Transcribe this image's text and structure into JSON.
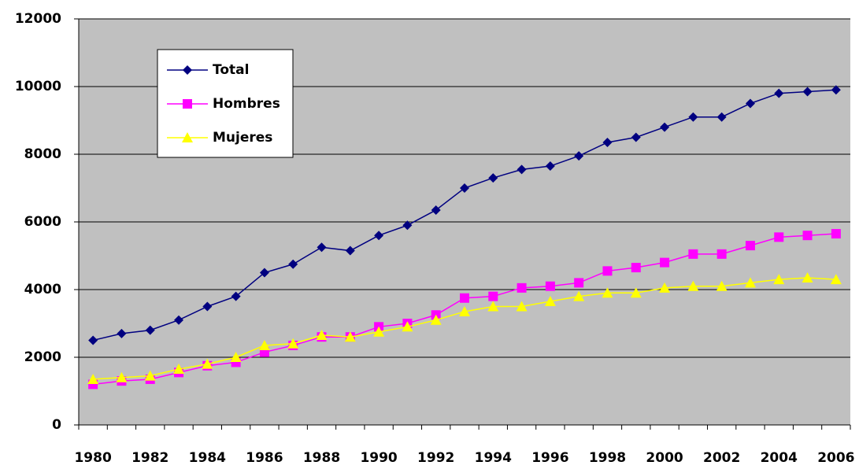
{
  "chart_data": {
    "type": "line",
    "categories": [
      1980,
      null,
      1982,
      null,
      1984,
      null,
      1986,
      null,
      1988,
      null,
      1990,
      null,
      1992,
      null,
      1994,
      null,
      1996,
      null,
      1998,
      null,
      2000,
      null,
      2002,
      null,
      2004,
      null,
      2006
    ],
    "series": [
      {
        "name": "Total",
        "color": "#000080",
        "marker": "diamond",
        "values": [
          2500,
          2700,
          2800,
          3100,
          3500,
          3800,
          4500,
          4750,
          5250,
          5150,
          5600,
          5900,
          6350,
          7000,
          7300,
          7550,
          7650,
          7950,
          8350,
          8500,
          8800,
          9100,
          9100,
          9500,
          9800,
          9850,
          9900
        ]
      },
      {
        "name": "Hombres",
        "color": "#ff00ff",
        "marker": "square",
        "values": [
          1200,
          1300,
          1350,
          1550,
          1750,
          1850,
          2150,
          2350,
          2600,
          2600,
          2900,
          3000,
          3250,
          3750,
          3800,
          4050,
          4100,
          4200,
          4550,
          4650,
          4800,
          5050,
          5050,
          5300,
          5550,
          5600,
          5650
        ]
      },
      {
        "name": "Mujeres",
        "color": "#ffff00",
        "marker": "triangle",
        "values": [
          1350,
          1400,
          1450,
          1650,
          1800,
          2000,
          2350,
          2400,
          2650,
          2600,
          2750,
          2900,
          3100,
          3350,
          3500,
          3500,
          3650,
          3800,
          3900,
          3900,
          4050,
          4100,
          4100,
          4200,
          4300,
          4350,
          4300
        ]
      }
    ],
    "ylim": [
      0,
      12000
    ],
    "yticks": [
      0,
      2000,
      4000,
      6000,
      8000,
      10000,
      12000
    ],
    "grid": true,
    "legend": "top-left",
    "background": "#c0c0c0"
  }
}
